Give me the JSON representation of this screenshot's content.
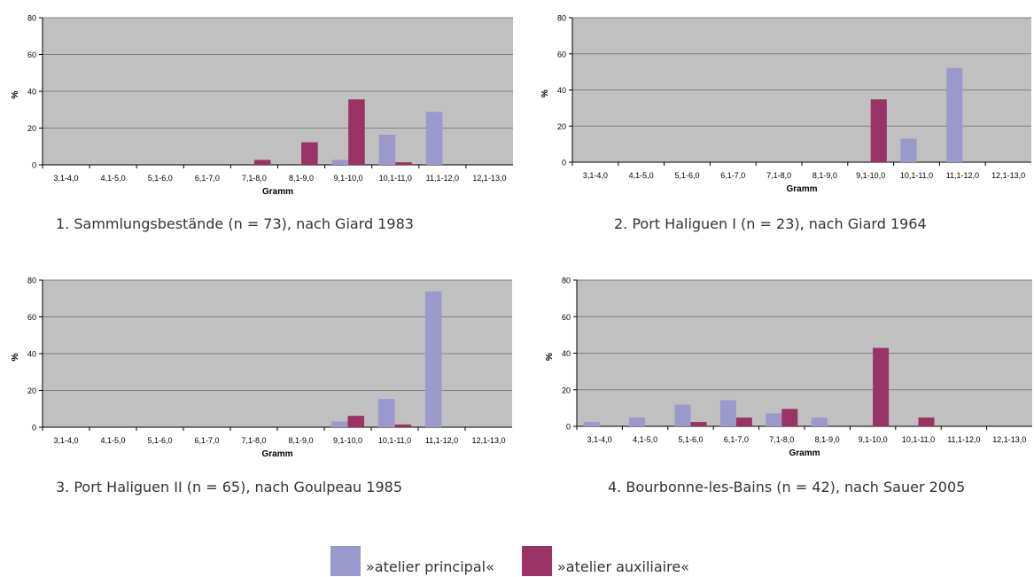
{
  "colors": {
    "principal": "#9999cc",
    "auxiliaire": "#993366",
    "plot_bg": "#c0c0c0",
    "grid": "#7f7f7f"
  },
  "legend": {
    "principal": "»atelier principal«",
    "auxiliaire": "»atelier auxiliaire«"
  },
  "chart_data": [
    {
      "type": "bar",
      "caption": "1. Sammlungsbestände (n = 73), nach Giard 1983",
      "xlabel": "Gramm",
      "ylabel": "%",
      "ylim": [
        0,
        80
      ],
      "yticks": [
        0,
        20,
        40,
        60,
        80
      ],
      "categories": [
        "3,1-4,0",
        "4,1-5,0",
        "5,1-6,0",
        "6,1-7,0",
        "7,1-8,0",
        "8,1-9,0",
        "9,1-10,0",
        "10,1-11,0",
        "11,1-12,0",
        "12,1-13,0"
      ],
      "series": [
        {
          "name": "»atelier principal«",
          "values": [
            0,
            0,
            0,
            0,
            0,
            0,
            2.7,
            16.4,
            28.8,
            0
          ]
        },
        {
          "name": "»atelier auxiliaire«",
          "values": [
            0,
            0,
            0,
            0,
            2.7,
            12.3,
            35.6,
            1.4,
            0,
            0
          ]
        }
      ]
    },
    {
      "type": "bar",
      "caption": "2. Port Haliguen I (n = 23), nach Giard 1964",
      "xlabel": "Gramm",
      "ylabel": "%",
      "ylim": [
        0,
        80
      ],
      "yticks": [
        0,
        20,
        40,
        60,
        80
      ],
      "categories": [
        "3,1-4,0",
        "4,1-5,0",
        "5,1-6,0",
        "6,1-7,0",
        "7,1-8,0",
        "8,1-9,0",
        "9,1-10,0",
        "10,1-11,0",
        "11,1-12,0",
        "12,1-13,0"
      ],
      "series": [
        {
          "name": "»atelier principal«",
          "values": [
            0,
            0,
            0,
            0,
            0,
            0,
            0,
            13.0,
            52.2,
            0
          ]
        },
        {
          "name": "»atelier auxiliaire«",
          "values": [
            0,
            0,
            0,
            0,
            0,
            0,
            34.8,
            0,
            0,
            0
          ]
        }
      ]
    },
    {
      "type": "bar",
      "caption": "3. Port Haliguen II (n = 65), nach Goulpeau 1985",
      "xlabel": "Gramm",
      "ylabel": "%",
      "ylim": [
        0,
        80
      ],
      "yticks": [
        0,
        20,
        40,
        60,
        80
      ],
      "categories": [
        "3,1-4,0",
        "4,1-5,0",
        "5,1-6,0",
        "6,1-7,0",
        "7,1-8,0",
        "8,1-9,0",
        "9,1-10,0",
        "10,1-11,0",
        "11,1-12,0",
        "12,1-13,0"
      ],
      "series": [
        {
          "name": "»atelier principal«",
          "values": [
            0,
            0,
            0,
            0,
            0,
            0,
            3.1,
            15.4,
            73.8,
            0
          ]
        },
        {
          "name": "»atelier auxiliaire«",
          "values": [
            0,
            0,
            0,
            0,
            0,
            0,
            6.2,
            1.5,
            0,
            0
          ]
        }
      ]
    },
    {
      "type": "bar",
      "caption": "4. Bourbonne-les-Bains (n = 42), nach Sauer 2005",
      "xlabel": "Gramm",
      "ylabel": "%",
      "ylim": [
        0,
        80
      ],
      "yticks": [
        0,
        20,
        40,
        60,
        80
      ],
      "categories": [
        "3,1-4,0",
        "4,1-5,0",
        "5,1-6,0",
        "6,1-7,0",
        "7,1-8,0",
        "8,1-9,0",
        "9,1-10,0",
        "10,1-11,0",
        "11,1-12,0",
        "12,1-13,0"
      ],
      "series": [
        {
          "name": "»atelier principal«",
          "values": [
            2.4,
            4.8,
            11.9,
            14.3,
            7.1,
            4.8,
            0,
            0,
            0,
            0
          ]
        },
        {
          "name": "»atelier auxiliaire«",
          "values": [
            0,
            0,
            2.4,
            4.8,
            9.5,
            0,
            42.9,
            4.8,
            0,
            0
          ]
        }
      ]
    }
  ]
}
